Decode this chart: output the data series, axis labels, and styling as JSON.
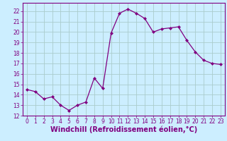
{
  "x": [
    0,
    1,
    2,
    3,
    4,
    5,
    6,
    7,
    8,
    9,
    10,
    11,
    12,
    13,
    14,
    15,
    16,
    17,
    18,
    19,
    20,
    21,
    22,
    23
  ],
  "y": [
    14.5,
    14.3,
    13.6,
    13.8,
    13.0,
    12.5,
    13.0,
    13.3,
    15.6,
    14.6,
    19.9,
    21.8,
    22.2,
    21.8,
    21.3,
    20.0,
    20.3,
    20.4,
    20.5,
    19.2,
    18.1,
    17.3,
    17.0,
    16.9
  ],
  "line_color": "#800080",
  "marker": "D",
  "marker_size": 2,
  "bg_color": "#cceeff",
  "grid_color": "#aacccc",
  "xlabel": "Windchill (Refroidissement éolien,°C)",
  "xlim": [
    -0.5,
    23.5
  ],
  "ylim": [
    12,
    22.8
  ],
  "yticks": [
    12,
    13,
    14,
    15,
    16,
    17,
    18,
    19,
    20,
    21,
    22
  ],
  "xticks": [
    0,
    1,
    2,
    3,
    4,
    5,
    6,
    7,
    8,
    9,
    10,
    11,
    12,
    13,
    14,
    15,
    16,
    17,
    18,
    19,
    20,
    21,
    22,
    23
  ],
  "tick_color": "#800080",
  "tick_fontsize": 5.5,
  "xlabel_fontsize": 7.0,
  "spine_color": "#800080",
  "linewidth": 0.9
}
